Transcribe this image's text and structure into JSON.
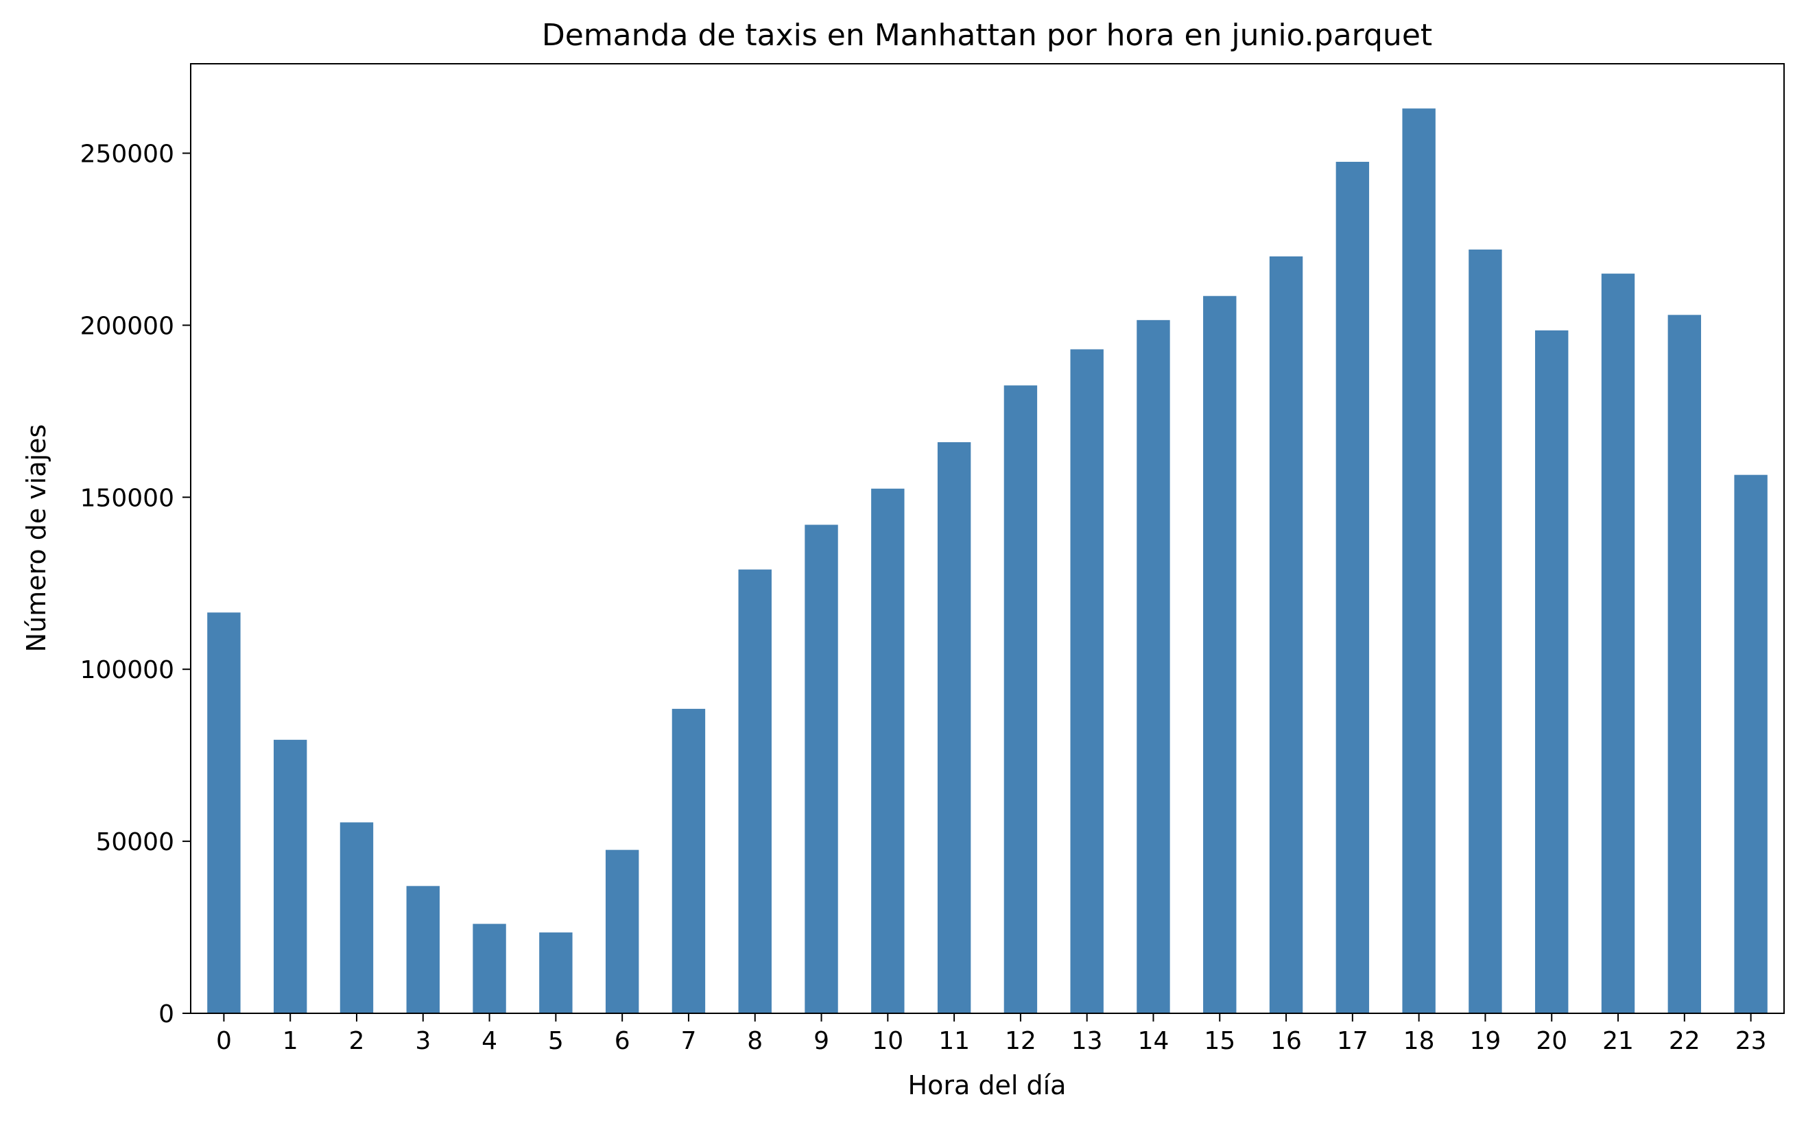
{
  "chart_data": {
    "type": "bar",
    "title": "Demanda de taxis en Manhattan por hora en junio.parquet",
    "xlabel": "Hora del día",
    "ylabel": "Número de viajes",
    "categories": [
      "0",
      "1",
      "2",
      "3",
      "4",
      "5",
      "6",
      "7",
      "8",
      "9",
      "10",
      "11",
      "12",
      "13",
      "14",
      "15",
      "16",
      "17",
      "18",
      "19",
      "20",
      "21",
      "22",
      "23"
    ],
    "values": [
      116500,
      79500,
      55500,
      37000,
      26000,
      23500,
      47500,
      88500,
      129000,
      142000,
      152500,
      166000,
      182500,
      193000,
      201500,
      208500,
      220000,
      247500,
      263000,
      222000,
      198500,
      215000,
      203000,
      156500
    ],
    "ylim": [
      0,
      276000
    ],
    "yticks": [
      0,
      50000,
      100000,
      150000,
      200000,
      250000
    ],
    "ytick_labels": [
      "0",
      "50000",
      "100000",
      "150000",
      "200000",
      "250000"
    ],
    "bar_color": "#4682b4",
    "grid": false,
    "legend": "none"
  }
}
